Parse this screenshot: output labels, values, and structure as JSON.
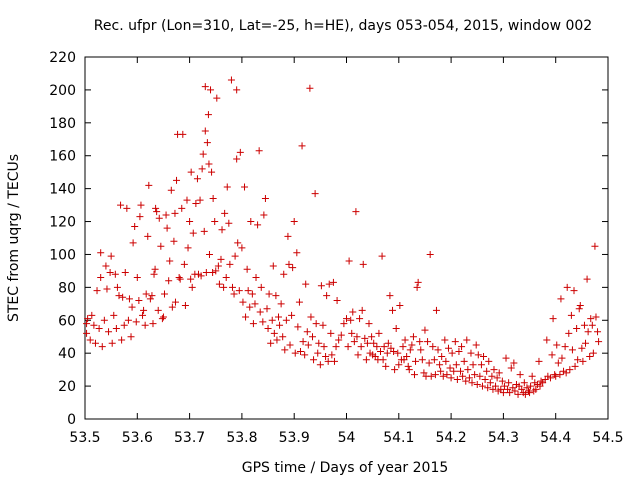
{
  "chart_data": {
    "type": "scatter",
    "title": "Rec. ufpr (Lon=310, Lat=-25, h=HE), days 053-054, 2015, window 002",
    "xlabel": "GPS time / Days of year 2015",
    "ylabel": "STEC from uqrg / TECUs",
    "xlim": [
      53.5,
      54.5
    ],
    "ylim": [
      0,
      220
    ],
    "xticks": [
      "53.5",
      "53.6",
      "53.7",
      "53.8",
      "53.9",
      "54",
      "54.1",
      "54.2",
      "54.3",
      "54.4",
      "54.5"
    ],
    "yticks": [
      "0",
      "20",
      "40",
      "60",
      "80",
      "100",
      "120",
      "140",
      "160",
      "180",
      "200",
      "220"
    ],
    "grid": false,
    "marker": "plus",
    "color": "#cc0000",
    "points": [
      [
        53.503,
        52
      ],
      [
        53.503,
        58
      ],
      [
        53.505,
        61
      ],
      [
        53.51,
        48
      ],
      [
        53.513,
        63
      ],
      [
        53.517,
        57
      ],
      [
        53.52,
        46
      ],
      [
        53.523,
        78
      ],
      [
        53.527,
        55
      ],
      [
        53.53,
        86
      ],
      [
        53.53,
        101
      ],
      [
        53.533,
        44
      ],
      [
        53.537,
        60
      ],
      [
        53.54,
        93
      ],
      [
        53.542,
        79
      ],
      [
        53.545,
        53
      ],
      [
        53.548,
        89
      ],
      [
        53.55,
        99
      ],
      [
        53.552,
        46
      ],
      [
        53.555,
        63
      ],
      [
        53.558,
        88
      ],
      [
        53.56,
        55
      ],
      [
        53.562,
        80
      ],
      [
        53.565,
        75
      ],
      [
        53.568,
        130
      ],
      [
        53.57,
        48
      ],
      [
        53.572,
        74
      ],
      [
        53.575,
        57
      ],
      [
        53.577,
        89
      ],
      [
        53.58,
        128
      ],
      [
        53.583,
        60
      ],
      [
        53.585,
        73
      ],
      [
        53.588,
        50
      ],
      [
        53.59,
        68
      ],
      [
        53.592,
        107
      ],
      [
        53.595,
        117
      ],
      [
        53.598,
        59
      ],
      [
        53.6,
        86
      ],
      [
        53.603,
        72
      ],
      [
        53.605,
        123
      ],
      [
        53.607,
        130
      ],
      [
        53.61,
        63
      ],
      [
        53.612,
        66
      ],
      [
        53.615,
        57
      ],
      [
        53.617,
        76
      ],
      [
        53.62,
        111
      ],
      [
        53.622,
        142
      ],
      [
        53.625,
        73
      ],
      [
        53.628,
        75
      ],
      [
        53.63,
        58
      ],
      [
        53.632,
        88
      ],
      [
        53.634,
        91
      ],
      [
        53.635,
        128
      ],
      [
        53.637,
        126
      ],
      [
        53.64,
        66
      ],
      [
        53.642,
        122
      ],
      [
        53.645,
        105
      ],
      [
        53.648,
        61
      ],
      [
        53.65,
        62
      ],
      [
        53.652,
        76
      ],
      [
        53.655,
        124
      ],
      [
        53.657,
        116
      ],
      [
        53.66,
        84
      ],
      [
        53.662,
        96
      ],
      [
        53.665,
        139
      ],
      [
        53.667,
        68
      ],
      [
        53.67,
        108
      ],
      [
        53.672,
        125
      ],
      [
        53.673,
        71
      ],
      [
        53.675,
        145
      ],
      [
        53.677,
        173
      ],
      [
        53.68,
        86
      ],
      [
        53.682,
        85
      ],
      [
        53.685,
        128
      ],
      [
        53.687,
        173
      ],
      [
        53.69,
        94
      ],
      [
        53.692,
        69
      ],
      [
        53.695,
        133
      ],
      [
        53.697,
        104
      ],
      [
        53.7,
        120
      ],
      [
        53.702,
        85
      ],
      [
        53.703,
        150
      ],
      [
        53.705,
        80
      ],
      [
        53.707,
        113
      ],
      [
        53.71,
        88
      ],
      [
        53.712,
        131
      ],
      [
        53.715,
        146
      ],
      [
        53.717,
        88
      ],
      [
        53.72,
        133
      ],
      [
        53.722,
        87
      ],
      [
        53.724,
        152
      ],
      [
        53.726,
        161
      ],
      [
        53.728,
        114
      ],
      [
        53.73,
        175
      ],
      [
        53.73,
        202
      ],
      [
        53.732,
        89
      ],
      [
        53.734,
        168
      ],
      [
        53.736,
        185
      ],
      [
        53.737,
        155
      ],
      [
        53.738,
        100
      ],
      [
        53.74,
        200
      ],
      [
        53.742,
        150
      ],
      [
        53.744,
        89
      ],
      [
        53.745,
        134
      ],
      [
        53.748,
        120
      ],
      [
        53.75,
        90
      ],
      [
        53.752,
        195
      ],
      [
        53.755,
        93
      ],
      [
        53.757,
        82
      ],
      [
        53.76,
        97
      ],
      [
        53.762,
        115
      ],
      [
        53.765,
        80
      ],
      [
        53.767,
        125
      ],
      [
        53.77,
        86
      ],
      [
        53.772,
        141
      ],
      [
        53.775,
        119
      ],
      [
        53.777,
        94
      ],
      [
        53.78,
        206
      ],
      [
        53.782,
        80
      ],
      [
        53.785,
        76
      ],
      [
        53.787,
        99
      ],
      [
        53.79,
        158
      ],
      [
        53.79,
        200
      ],
      [
        53.792,
        107
      ],
      [
        53.795,
        78
      ],
      [
        53.797,
        162
      ],
      [
        53.8,
        104
      ],
      [
        53.802,
        71
      ],
      [
        53.805,
        141
      ],
      [
        53.807,
        62
      ],
      [
        53.81,
        91
      ],
      [
        53.812,
        78
      ],
      [
        53.815,
        68
      ],
      [
        53.817,
        120
      ],
      [
        53.82,
        76
      ],
      [
        53.822,
        58
      ],
      [
        53.825,
        70
      ],
      [
        53.827,
        86
      ],
      [
        53.83,
        118
      ],
      [
        53.833,
        163
      ],
      [
        53.835,
        65
      ],
      [
        53.837,
        80
      ],
      [
        53.84,
        59
      ],
      [
        53.842,
        124
      ],
      [
        53.845,
        134
      ],
      [
        53.848,
        67
      ],
      [
        53.85,
        55
      ],
      [
        53.852,
        76
      ],
      [
        53.855,
        46
      ],
      [
        53.858,
        60
      ],
      [
        53.86,
        93
      ],
      [
        53.862,
        52
      ],
      [
        53.865,
        75
      ],
      [
        53.867,
        48
      ],
      [
        53.87,
        62
      ],
      [
        53.872,
        57
      ],
      [
        53.875,
        70
      ],
      [
        53.878,
        50
      ],
      [
        53.88,
        88
      ],
      [
        53.882,
        42
      ],
      [
        53.885,
        60
      ],
      [
        53.888,
        111
      ],
      [
        53.89,
        94
      ],
      [
        53.892,
        45
      ],
      [
        53.895,
        63
      ],
      [
        53.897,
        92
      ],
      [
        53.9,
        120
      ],
      [
        53.902,
        40
      ],
      [
        53.905,
        101
      ],
      [
        53.907,
        56
      ],
      [
        53.91,
        71
      ],
      [
        53.912,
        41
      ],
      [
        53.915,
        166
      ],
      [
        53.917,
        47
      ],
      [
        53.92,
        39
      ],
      [
        53.922,
        82
      ],
      [
        53.925,
        53
      ],
      [
        53.927,
        45
      ],
      [
        53.93,
        201
      ],
      [
        53.932,
        62
      ],
      [
        53.935,
        50
      ],
      [
        53.937,
        36
      ],
      [
        53.94,
        137
      ],
      [
        53.942,
        58
      ],
      [
        53.945,
        40
      ],
      [
        53.947,
        46
      ],
      [
        53.95,
        33
      ],
      [
        53.952,
        81
      ],
      [
        53.955,
        57
      ],
      [
        53.957,
        44
      ],
      [
        53.96,
        38
      ],
      [
        53.962,
        75
      ],
      [
        53.965,
        35
      ],
      [
        53.967,
        82
      ],
      [
        53.97,
        52
      ],
      [
        53.972,
        39
      ],
      [
        53.975,
        83
      ],
      [
        53.977,
        35
      ],
      [
        53.98,
        44
      ],
      [
        53.982,
        72
      ],
      [
        53.985,
        48
      ],
      [
        53.99,
        51
      ],
      [
        53.995,
        58
      ],
      [
        54.0,
        61
      ],
      [
        54.003,
        44
      ],
      [
        54.005,
        96
      ],
      [
        54.008,
        60
      ],
      [
        54.01,
        52
      ],
      [
        54.012,
        65
      ],
      [
        54.015,
        47
      ],
      [
        54.018,
        126
      ],
      [
        54.02,
        50
      ],
      [
        54.022,
        39
      ],
      [
        54.025,
        61
      ],
      [
        54.028,
        44
      ],
      [
        54.03,
        66
      ],
      [
        54.032,
        94
      ],
      [
        54.035,
        49
      ],
      [
        54.038,
        36
      ],
      [
        54.04,
        46
      ],
      [
        54.043,
        58
      ],
      [
        54.045,
        40
      ],
      [
        54.048,
        50
      ],
      [
        54.05,
        39
      ],
      [
        54.052,
        46
      ],
      [
        54.055,
        38
      ],
      [
        54.058,
        44
      ],
      [
        54.06,
        36
      ],
      [
        54.062,
        52
      ],
      [
        54.065,
        41
      ],
      [
        54.068,
        99
      ],
      [
        54.07,
        36
      ],
      [
        54.072,
        44
      ],
      [
        54.075,
        32
      ],
      [
        54.078,
        40
      ],
      [
        54.08,
        46
      ],
      [
        54.083,
        75
      ],
      [
        54.085,
        43
      ],
      [
        54.088,
        66
      ],
      [
        54.09,
        41
      ],
      [
        54.092,
        30
      ],
      [
        54.095,
        55
      ],
      [
        54.098,
        40
      ],
      [
        54.1,
        33
      ],
      [
        54.102,
        69
      ],
      [
        54.105,
        36
      ],
      [
        54.108,
        44
      ],
      [
        54.11,
        36
      ],
      [
        54.112,
        48
      ],
      [
        54.115,
        38
      ],
      [
        54.118,
        32
      ],
      [
        54.12,
        30
      ],
      [
        54.122,
        42
      ],
      [
        54.125,
        45
      ],
      [
        54.128,
        50
      ],
      [
        54.13,
        27
      ],
      [
        54.132,
        35
      ],
      [
        54.135,
        80
      ],
      [
        54.137,
        83
      ],
      [
        54.14,
        47
      ],
      [
        54.142,
        42
      ],
      [
        54.145,
        36
      ],
      [
        54.148,
        28
      ],
      [
        54.15,
        54
      ],
      [
        54.152,
        26
      ],
      [
        54.155,
        47
      ],
      [
        54.158,
        34
      ],
      [
        54.16,
        100
      ],
      [
        54.162,
        26
      ],
      [
        54.165,
        44
      ],
      [
        54.168,
        36
      ],
      [
        54.17,
        27
      ],
      [
        54.172,
        66
      ],
      [
        54.175,
        42
      ],
      [
        54.178,
        33
      ],
      [
        54.18,
        29
      ],
      [
        54.182,
        38
      ],
      [
        54.185,
        26
      ],
      [
        54.188,
        48
      ],
      [
        54.19,
        35
      ],
      [
        54.192,
        27
      ],
      [
        54.195,
        43
      ],
      [
        54.198,
        31
      ],
      [
        54.2,
        25
      ],
      [
        54.202,
        40
      ],
      [
        54.205,
        29
      ],
      [
        54.208,
        47
      ],
      [
        54.21,
        33
      ],
      [
        54.212,
        24
      ],
      [
        54.215,
        41
      ],
      [
        54.218,
        29
      ],
      [
        54.22,
        44
      ],
      [
        54.222,
        26
      ],
      [
        54.225,
        35
      ],
      [
        54.228,
        23
      ],
      [
        54.23,
        48
      ],
      [
        54.232,
        30
      ],
      [
        54.235,
        25
      ],
      [
        54.238,
        40
      ],
      [
        54.24,
        22
      ],
      [
        54.242,
        33
      ],
      [
        54.245,
        27
      ],
      [
        54.248,
        45
      ],
      [
        54.25,
        21
      ],
      [
        54.252,
        39
      ],
      [
        54.255,
        26
      ],
      [
        54.258,
        33
      ],
      [
        54.26,
        20
      ],
      [
        54.262,
        38
      ],
      [
        54.265,
        24
      ],
      [
        54.268,
        29
      ],
      [
        54.27,
        19
      ],
      [
        54.272,
        35
      ],
      [
        54.275,
        22
      ],
      [
        54.278,
        26
      ],
      [
        54.28,
        18
      ],
      [
        54.282,
        30
      ],
      [
        54.285,
        20
      ],
      [
        54.288,
        25
      ],
      [
        54.29,
        17
      ],
      [
        54.292,
        28
      ],
      [
        54.295,
        18
      ],
      [
        54.298,
        23
      ],
      [
        54.3,
        16
      ],
      [
        54.302,
        20
      ],
      [
        54.305,
        37
      ],
      [
        54.308,
        18
      ],
      [
        54.31,
        22
      ],
      [
        54.312,
        16
      ],
      [
        54.315,
        31
      ],
      [
        54.318,
        19
      ],
      [
        54.32,
        34
      ],
      [
        54.322,
        17
      ],
      [
        54.325,
        21
      ],
      [
        54.328,
        15
      ],
      [
        54.33,
        20
      ],
      [
        54.332,
        27
      ],
      [
        54.335,
        18
      ],
      [
        54.338,
        16
      ],
      [
        54.34,
        22
      ],
      [
        54.342,
        15
      ],
      [
        54.345,
        19
      ],
      [
        54.348,
        17
      ],
      [
        54.35,
        16
      ],
      [
        54.352,
        20
      ],
      [
        54.355,
        26
      ],
      [
        54.358,
        17
      ],
      [
        54.36,
        22
      ],
      [
        54.362,
        18
      ],
      [
        54.365,
        21
      ],
      [
        54.368,
        35
      ],
      [
        54.37,
        20
      ],
      [
        54.372,
        23
      ],
      [
        54.375,
        22
      ],
      [
        54.38,
        24
      ],
      [
        54.383,
        48
      ],
      [
        54.385,
        26
      ],
      [
        54.39,
        25
      ],
      [
        54.393,
        39
      ],
      [
        54.395,
        61
      ],
      [
        54.398,
        27
      ],
      [
        54.4,
        26
      ],
      [
        54.402,
        45
      ],
      [
        54.405,
        34
      ],
      [
        54.408,
        27
      ],
      [
        54.41,
        73
      ],
      [
        54.412,
        37
      ],
      [
        54.415,
        29
      ],
      [
        54.418,
        44
      ],
      [
        54.42,
        28
      ],
      [
        54.422,
        80
      ],
      [
        54.425,
        52
      ],
      [
        54.427,
        30
      ],
      [
        54.43,
        63
      ],
      [
        54.432,
        42
      ],
      [
        54.435,
        78
      ],
      [
        54.437,
        32
      ],
      [
        54.44,
        55
      ],
      [
        54.442,
        36
      ],
      [
        54.445,
        67
      ],
      [
        54.447,
        69
      ],
      [
        54.45,
        43
      ],
      [
        54.452,
        35
      ],
      [
        54.455,
        57
      ],
      [
        54.457,
        46
      ],
      [
        54.46,
        85
      ],
      [
        54.462,
        53
      ],
      [
        54.465,
        38
      ],
      [
        54.467,
        61
      ],
      [
        54.47,
        57
      ],
      [
        54.472,
        40
      ],
      [
        54.475,
        105
      ],
      [
        54.477,
        62
      ],
      [
        54.48,
        53
      ],
      [
        54.482,
        47
      ]
    ]
  }
}
